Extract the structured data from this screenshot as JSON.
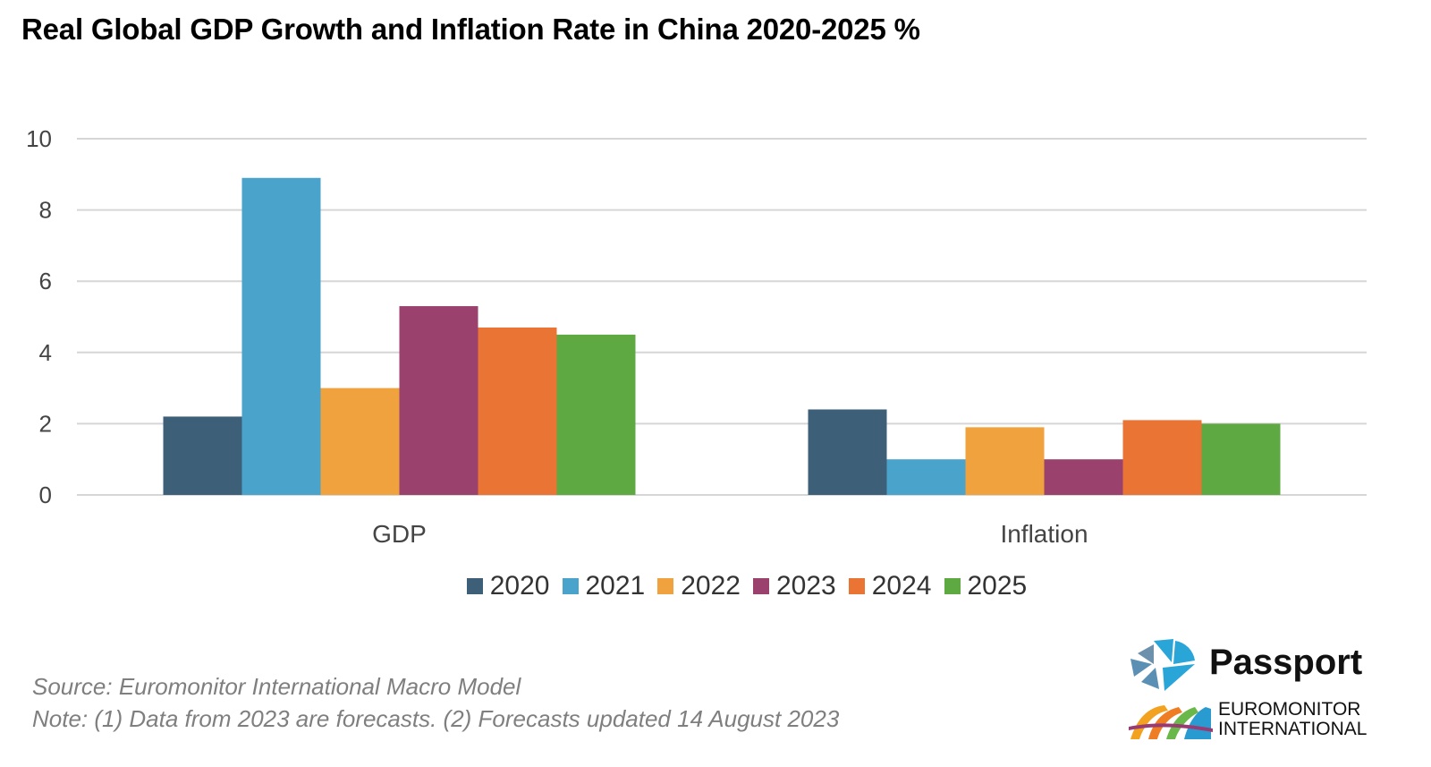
{
  "chart_data": {
    "type": "bar",
    "title": "Real Global GDP Growth and Inflation Rate in China 2020-2025 %",
    "xlabel": "",
    "ylabel": "",
    "ylim": [
      0,
      10
    ],
    "yticks": [
      0,
      2,
      4,
      6,
      8,
      10
    ],
    "grid": true,
    "legend_position": "bottom",
    "categories": [
      "GDP",
      "Inflation"
    ],
    "series": [
      {
        "name": "2020",
        "color": "#3d6078",
        "values": [
          2.2,
          2.4
        ]
      },
      {
        "name": "2021",
        "color": "#4aa3cb",
        "values": [
          8.9,
          1.0
        ]
      },
      {
        "name": "2022",
        "color": "#efa23d",
        "values": [
          3.0,
          1.9
        ]
      },
      {
        "name": "2023",
        "color": "#9a416e",
        "values": [
          5.3,
          1.0
        ]
      },
      {
        "name": "2024",
        "color": "#ea7433",
        "values": [
          4.7,
          2.1
        ]
      },
      {
        "name": "2025",
        "color": "#5ea942",
        "values": [
          4.5,
          2.0
        ]
      }
    ]
  },
  "footer": {
    "source": "Source: Euromonitor International Macro Model",
    "note": "Note: (1) Data from 2023 are forecasts. (2) Forecasts updated 14 August 2023"
  },
  "logo": {
    "passport": "Passport",
    "euromonitor_line1": "EUROMONITOR",
    "euromonitor_line2": "INTERNATIONAL"
  }
}
